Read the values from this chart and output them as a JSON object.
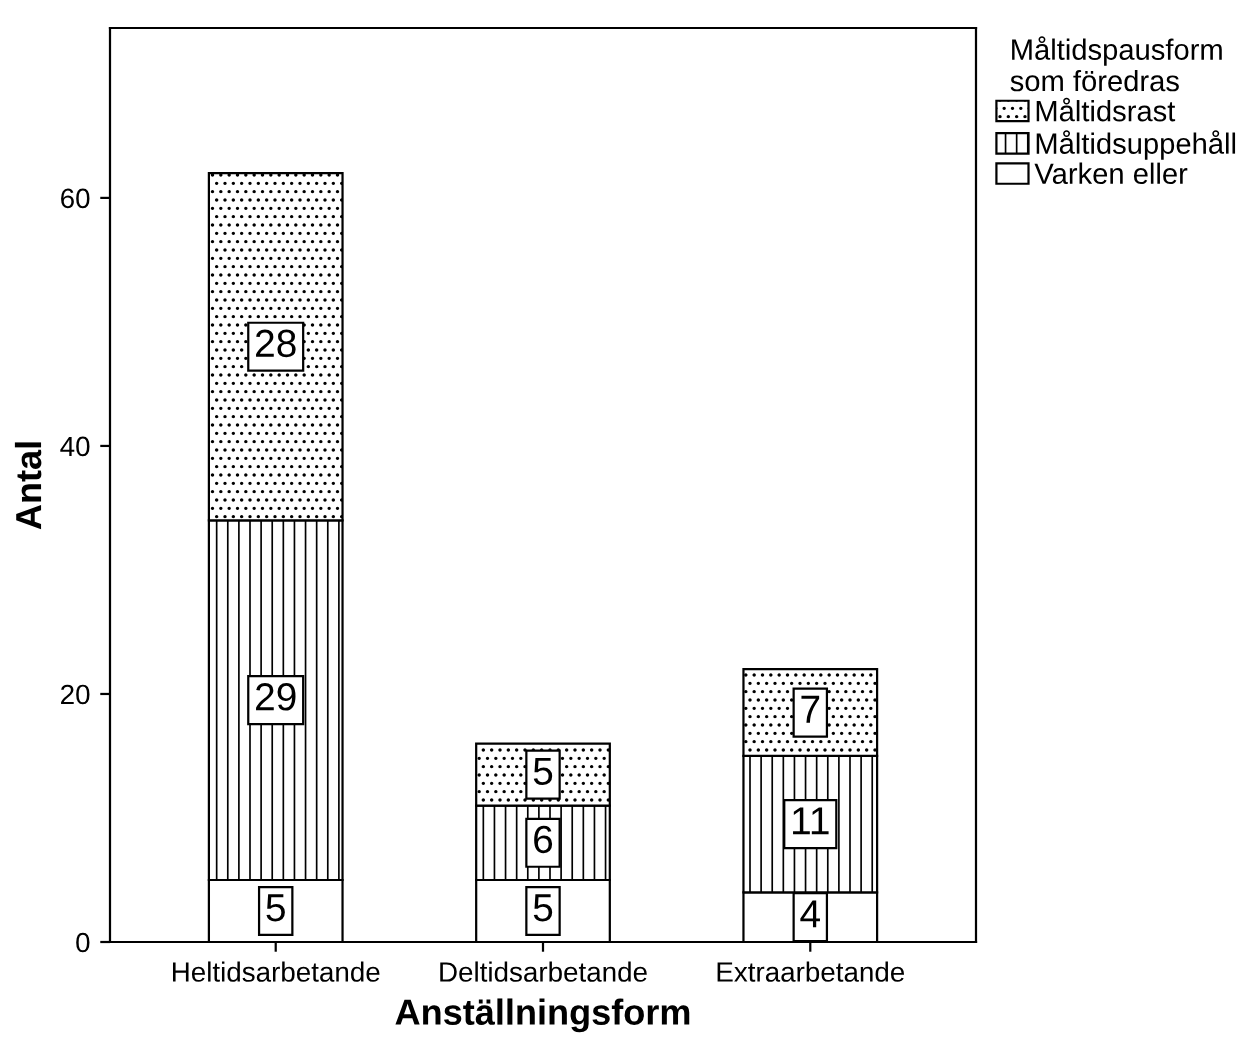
{
  "chart_data": {
    "type": "bar",
    "stacked": true,
    "xlabel": "Anställningsform",
    "ylabel": "Antal",
    "legend_title": "Måltidspausform\nsom föredras",
    "legend": "top right",
    "categories": [
      "Heltidsarbetande",
      "Deltidsarbetande",
      "Extraarbetande"
    ],
    "series": [
      {
        "name": "Varken eller",
        "color": "#ffffff",
        "values": [
          5,
          5,
          4
        ]
      },
      {
        "name": "Måltidsuppehåll",
        "color": "#000000",
        "values": [
          29,
          6,
          11
        ]
      },
      {
        "name": "Måltidsrast",
        "color": "#000000",
        "values": [
          28,
          5,
          7
        ]
      }
    ],
    "data_labels": true,
    "ylim": [
      0,
      73.7
    ],
    "yticks": [
      0,
      20,
      40,
      60
    ],
    "grid": false
  }
}
